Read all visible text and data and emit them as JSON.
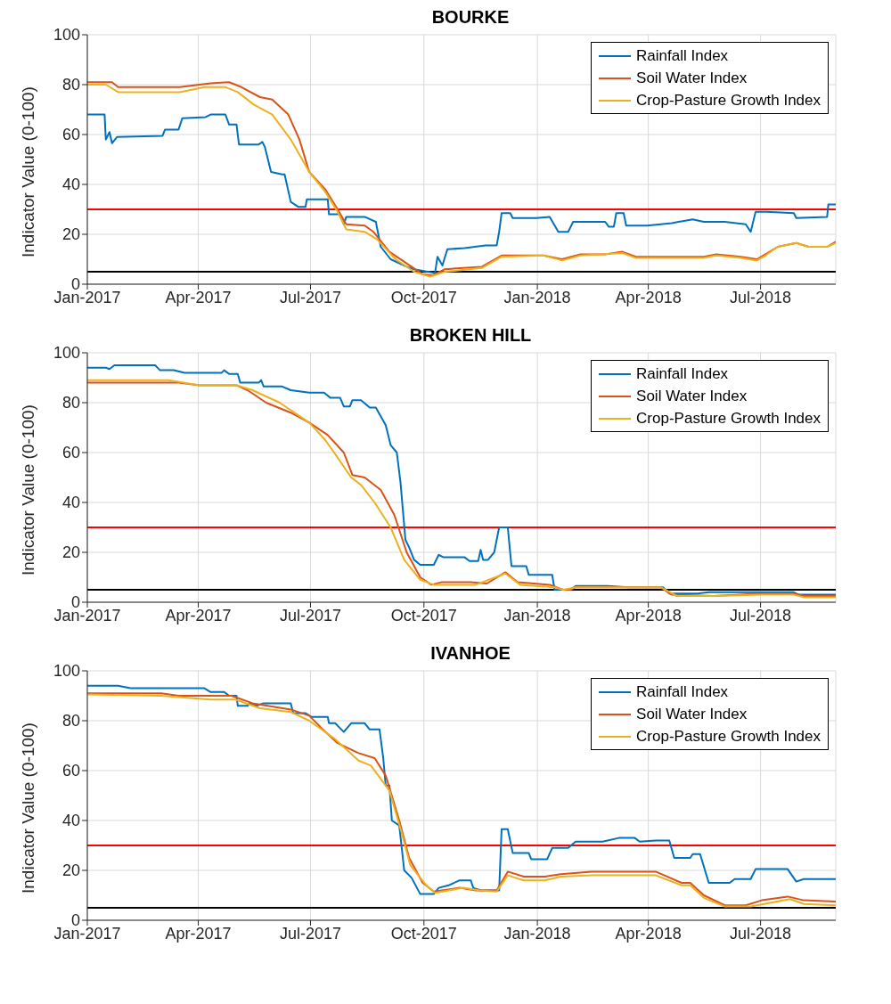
{
  "chart_data": [
    {
      "type": "line",
      "title": "BOURKE",
      "ylabel": "Indicator Value (0-100)",
      "xlim": [
        "2017-01-01",
        "2018-08-31"
      ],
      "xticks": [
        {
          "value": "2017-01-01",
          "label": "Jan-2017"
        },
        {
          "value": "2017-04-01",
          "label": "Apr-2017"
        },
        {
          "value": "2017-07-01",
          "label": "Jul-2017"
        },
        {
          "value": "2017-10-01",
          "label": "Oct-2017"
        },
        {
          "value": "2018-01-01",
          "label": "Jan-2018"
        },
        {
          "value": "2018-04-01",
          "label": "Apr-2018"
        },
        {
          "value": "2018-07-01",
          "label": "Jul-2018"
        }
      ],
      "ylim": [
        0,
        100
      ],
      "yticks": [
        0,
        20,
        40,
        60,
        80,
        100
      ],
      "grid": true,
      "legend": "top right",
      "ref_lines": [
        {
          "axis": "y",
          "value": 30,
          "color": "#ff0000"
        },
        {
          "axis": "y",
          "value": 5,
          "color": "#000000"
        }
      ],
      "series": [
        {
          "name": "Rainfall Index",
          "color": "#0072bd",
          "x": [
            "2017-01-01",
            "2017-01-15",
            "2017-01-16",
            "2017-01-19",
            "2017-01-21",
            "2017-01-25",
            "2017-03-03",
            "2017-03-05",
            "2017-03-16",
            "2017-03-19",
            "2017-04-07",
            "2017-04-11",
            "2017-04-23",
            "2017-04-26",
            "2017-05-02",
            "2017-05-04",
            "2017-05-20",
            "2017-05-23",
            "2017-05-25",
            "2017-05-30",
            "2017-06-08",
            "2017-06-10",
            "2017-06-15",
            "2017-06-21",
            "2017-06-27",
            "2017-06-28",
            "2017-07-15",
            "2017-07-16",
            "2017-07-25",
            "2017-07-28",
            "2017-07-30",
            "2017-08-14",
            "2017-08-23",
            "2017-08-27",
            "2017-09-04",
            "2017-09-17",
            "2017-09-23",
            "2017-10-04",
            "2017-10-10",
            "2017-10-12",
            "2017-10-16",
            "2017-10-20",
            "2017-11-03",
            "2017-11-20",
            "2017-11-29",
            "2017-12-01",
            "2017-12-03",
            "2017-12-10",
            "2017-12-12",
            "2017-12-31",
            "2018-01-11",
            "2018-01-18",
            "2018-01-26",
            "2018-01-30",
            "2018-02-25",
            "2018-02-28",
            "2018-03-04",
            "2018-03-06",
            "2018-03-12",
            "2018-03-14",
            "2018-03-31",
            "2018-04-20",
            "2018-05-07",
            "2018-05-16",
            "2018-06-02",
            "2018-06-19",
            "2018-06-23",
            "2018-06-27",
            "2018-07-06",
            "2018-07-28",
            "2018-07-30",
            "2018-08-24",
            "2018-08-25",
            "2018-08-31"
          ],
          "values": [
            68,
            68,
            58,
            61,
            56.5,
            59,
            59.5,
            62,
            62,
            66.5,
            67,
            68,
            68,
            64,
            64,
            56,
            56,
            57,
            55,
            45,
            44,
            44,
            33,
            31,
            31,
            34,
            34,
            28,
            28,
            24,
            27,
            27,
            25,
            15,
            10,
            7,
            6,
            5,
            4.5,
            11,
            7.5,
            14,
            14.5,
            15.5,
            15.5,
            21,
            28.5,
            28.5,
            26.5,
            26.5,
            27,
            21,
            21,
            25,
            25,
            23,
            23,
            28.5,
            28.5,
            23.5,
            23.5,
            24.5,
            26,
            25,
            25,
            24,
            21,
            29,
            29,
            28.5,
            26.5,
            27,
            32,
            32
          ]
        },
        {
          "name": "Soil Water Index",
          "color": "#d95319",
          "x": [
            "2017-01-01",
            "2017-01-21",
            "2017-01-26",
            "2017-03-17",
            "2017-04-11",
            "2017-04-26",
            "2017-05-06",
            "2017-05-21",
            "2017-05-31",
            "2017-06-13",
            "2017-06-22",
            "2017-06-30",
            "2017-07-13",
            "2017-07-23",
            "2017-07-30",
            "2017-08-14",
            "2017-08-21",
            "2017-09-03",
            "2017-09-18",
            "2017-09-30",
            "2017-10-08",
            "2017-10-18",
            "2017-11-17",
            "2017-12-03",
            "2018-01-06",
            "2018-01-21",
            "2018-02-05",
            "2018-02-25",
            "2018-03-11",
            "2018-03-22",
            "2018-05-16",
            "2018-05-26",
            "2018-06-15",
            "2018-06-28",
            "2018-07-05",
            "2018-07-15",
            "2018-07-30",
            "2018-08-09",
            "2018-08-24",
            "2018-08-31"
          ],
          "values": [
            81,
            81,
            79,
            79,
            80.5,
            81,
            79,
            75,
            74,
            68,
            58,
            45,
            38,
            30,
            24,
            23.5,
            21,
            13,
            8,
            4,
            3.5,
            6,
            7,
            11.5,
            11.5,
            10,
            12,
            12,
            13,
            11,
            11,
            12,
            11,
            10,
            12,
            15,
            16.5,
            15,
            15,
            17
          ]
        },
        {
          "name": "Crop-Pasture Growth Index",
          "color": "#edb120",
          "x": [
            "2017-01-01",
            "2017-01-16",
            "2017-01-26",
            "2017-03-17",
            "2017-04-06",
            "2017-04-23",
            "2017-05-03",
            "2017-05-16",
            "2017-05-31",
            "2017-06-15",
            "2017-06-30",
            "2017-07-13",
            "2017-07-23",
            "2017-07-30",
            "2017-08-14",
            "2017-08-24",
            "2017-09-08",
            "2017-09-23",
            "2017-10-06",
            "2017-10-18",
            "2017-11-17",
            "2017-12-03",
            "2018-01-06",
            "2018-01-21",
            "2018-02-05",
            "2018-03-11",
            "2018-03-22",
            "2018-05-16",
            "2018-05-26",
            "2018-06-15",
            "2018-06-28",
            "2018-07-05",
            "2018-07-15",
            "2018-07-30",
            "2018-08-09",
            "2018-08-24",
            "2018-08-31"
          ],
          "values": [
            80,
            80,
            77,
            77,
            79,
            79,
            77,
            72,
            68,
            58,
            45,
            37,
            29,
            22,
            21,
            18,
            10,
            5,
            3,
            5,
            6.5,
            11,
            11.5,
            9.5,
            11.5,
            12.5,
            10.5,
            10.5,
            11.5,
            10.5,
            9.5,
            11.5,
            15,
            16.5,
            15,
            15,
            16.5
          ]
        }
      ]
    },
    {
      "type": "line",
      "title": "BROKEN HILL",
      "ylabel": "Indicator Value (0-100)",
      "xlim": [
        "2017-01-01",
        "2018-08-31"
      ],
      "xticks": [
        {
          "value": "2017-01-01",
          "label": "Jan-2017"
        },
        {
          "value": "2017-04-01",
          "label": "Apr-2017"
        },
        {
          "value": "2017-07-01",
          "label": "Jul-2017"
        },
        {
          "value": "2017-10-01",
          "label": "Oct-2017"
        },
        {
          "value": "2018-01-01",
          "label": "Jan-2018"
        },
        {
          "value": "2018-04-01",
          "label": "Apr-2018"
        },
        {
          "value": "2018-07-01",
          "label": "Jul-2018"
        }
      ],
      "ylim": [
        0,
        100
      ],
      "yticks": [
        0,
        20,
        40,
        60,
        80,
        100
      ],
      "grid": true,
      "legend": "top right",
      "ref_lines": [
        {
          "axis": "y",
          "value": 30,
          "color": "#ff0000"
        },
        {
          "axis": "y",
          "value": 5,
          "color": "#000000"
        }
      ],
      "series": [
        {
          "name": "Rainfall Index",
          "color": "#0072bd",
          "x": [
            "2017-01-01",
            "2017-01-16",
            "2017-01-19",
            "2017-01-23",
            "2017-02-25",
            "2017-03-01",
            "2017-03-12",
            "2017-03-21",
            "2017-04-20",
            "2017-04-22",
            "2017-04-26",
            "2017-05-03",
            "2017-05-05",
            "2017-05-20",
            "2017-05-22",
            "2017-05-24",
            "2017-06-08",
            "2017-06-15",
            "2017-06-30",
            "2017-07-12",
            "2017-07-17",
            "2017-07-25",
            "2017-07-28",
            "2017-08-02",
            "2017-08-04",
            "2017-08-11",
            "2017-08-18",
            "2017-08-23",
            "2017-08-31",
            "2017-09-04",
            "2017-09-09",
            "2017-09-12",
            "2017-09-16",
            "2017-09-19",
            "2017-09-23",
            "2017-09-28",
            "2017-10-09",
            "2017-10-13",
            "2017-10-17",
            "2017-11-03",
            "2017-11-07",
            "2017-11-14",
            "2017-11-16",
            "2017-11-18",
            "2017-11-22",
            "2017-11-27",
            "2017-12-01",
            "2017-12-08",
            "2017-12-11",
            "2017-12-23",
            "2017-12-25",
            "2018-01-13",
            "2018-01-15",
            "2018-01-28",
            "2018-02-01",
            "2018-02-27",
            "2018-03-16",
            "2018-04-13",
            "2018-04-18",
            "2018-05-11",
            "2018-05-20",
            "2018-07-28",
            "2018-08-01",
            "2018-08-31"
          ],
          "values": [
            94,
            94,
            93.5,
            95,
            95,
            93,
            93,
            92,
            92,
            93,
            91.5,
            91.5,
            88,
            88,
            89,
            86.5,
            86.5,
            85,
            84,
            84,
            82,
            82,
            78.5,
            78.5,
            81,
            81,
            78,
            78,
            71,
            63,
            60,
            48,
            25,
            22,
            17,
            15,
            15,
            19,
            18,
            18,
            16.5,
            16.5,
            21,
            17,
            17,
            20,
            30,
            30,
            14.5,
            14.5,
            11,
            11,
            5,
            5,
            6.5,
            6.5,
            6,
            6,
            3.5,
            3.5,
            4,
            4,
            3,
            3
          ]
        },
        {
          "name": "Soil Water Index",
          "color": "#d95319",
          "x": [
            "2017-01-01",
            "2017-03-16",
            "2017-04-02",
            "2017-05-02",
            "2017-05-11",
            "2017-05-26",
            "2017-06-15",
            "2017-06-30",
            "2017-07-15",
            "2017-07-28",
            "2017-08-04",
            "2017-08-14",
            "2017-08-27",
            "2017-09-07",
            "2017-09-17",
            "2017-09-28",
            "2017-10-07",
            "2017-10-15",
            "2017-11-08",
            "2017-11-21",
            "2017-12-06",
            "2017-12-16",
            "2018-01-11",
            "2018-01-22",
            "2018-01-28",
            "2018-02-01",
            "2018-04-11",
            "2018-04-20",
            "2018-05-24",
            "2018-07-02",
            "2018-07-28",
            "2018-08-05",
            "2018-08-31"
          ],
          "values": [
            88,
            88,
            87,
            87,
            85,
            80,
            76,
            72,
            67,
            60,
            51,
            50,
            45,
            35,
            20,
            10,
            7,
            8,
            8,
            7.5,
            12,
            8,
            7,
            5,
            5,
            6,
            6,
            3,
            2.5,
            3.5,
            3.5,
            2.5,
            2.5
          ]
        },
        {
          "name": "Crop-Pasture Growth Index",
          "color": "#edb120",
          "x": [
            "2017-01-01",
            "2017-03-08",
            "2017-04-02",
            "2017-05-02",
            "2017-05-15",
            "2017-06-06",
            "2017-06-30",
            "2017-07-13",
            "2017-07-23",
            "2017-08-03",
            "2017-08-11",
            "2017-08-22",
            "2017-09-04",
            "2017-09-15",
            "2017-09-28",
            "2017-10-09",
            "2017-11-12",
            "2017-12-06",
            "2017-12-18",
            "2018-01-15",
            "2018-01-22",
            "2018-02-01",
            "2018-04-11",
            "2018-04-24",
            "2018-05-24",
            "2018-07-02",
            "2018-07-28",
            "2018-08-05",
            "2018-08-31"
          ],
          "values": [
            89,
            89,
            87,
            87,
            85,
            80,
            72,
            65,
            58,
            50,
            47,
            40,
            30,
            17,
            9,
            7,
            7,
            11.5,
            7,
            6,
            5,
            6,
            6,
            2.5,
            2.5,
            3,
            3,
            2,
            2
          ]
        }
      ]
    },
    {
      "type": "line",
      "title": "IVANHOE",
      "ylabel": "Indicator Value (0-100)",
      "xlim": [
        "2017-01-01",
        "2018-08-31"
      ],
      "xticks": [
        {
          "value": "2017-01-01",
          "label": "Jan-2017"
        },
        {
          "value": "2017-04-01",
          "label": "Apr-2017"
        },
        {
          "value": "2017-07-01",
          "label": "Jul-2017"
        },
        {
          "value": "2017-10-01",
          "label": "Oct-2017"
        },
        {
          "value": "2018-01-01",
          "label": "Jan-2018"
        },
        {
          "value": "2018-04-01",
          "label": "Apr-2018"
        },
        {
          "value": "2018-07-01",
          "label": "Jul-2018"
        }
      ],
      "ylim": [
        0,
        100
      ],
      "yticks": [
        0,
        20,
        40,
        60,
        80,
        100
      ],
      "grid": true,
      "legend": "top right",
      "ref_lines": [
        {
          "axis": "y",
          "value": 30,
          "color": "#ff0000"
        },
        {
          "axis": "y",
          "value": 5,
          "color": "#000000"
        }
      ],
      "series": [
        {
          "name": "Rainfall Index",
          "color": "#0072bd",
          "x": [
            "2017-01-01",
            "2017-01-26",
            "2017-02-05",
            "2017-04-06",
            "2017-04-11",
            "2017-04-22",
            "2017-04-26",
            "2017-05-02",
            "2017-05-03",
            "2017-05-11",
            "2017-05-13",
            "2017-05-18",
            "2017-05-24",
            "2017-06-15",
            "2017-06-17",
            "2017-06-27",
            "2017-07-02",
            "2017-07-15",
            "2017-07-16",
            "2017-07-21",
            "2017-07-28",
            "2017-08-03",
            "2017-08-14",
            "2017-08-18",
            "2017-08-26",
            "2017-08-29",
            "2017-08-31",
            "2017-09-03",
            "2017-09-05",
            "2017-09-11",
            "2017-09-15",
            "2017-09-21",
            "2017-09-28",
            "2017-10-09",
            "2017-10-13",
            "2017-10-21",
            "2017-10-30",
            "2017-11-08",
            "2017-11-10",
            "2017-11-16",
            "2017-12-01",
            "2017-12-03",
            "2017-12-08",
            "2017-12-12",
            "2017-12-25",
            "2017-12-27",
            "2018-01-09",
            "2018-01-13",
            "2018-01-26",
            "2018-02-01",
            "2018-02-23",
            "2018-03-08",
            "2018-03-21",
            "2018-03-25",
            "2018-04-07",
            "2018-04-18",
            "2018-04-22",
            "2018-05-05",
            "2018-05-07",
            "2018-05-13",
            "2018-05-20",
            "2018-06-06",
            "2018-06-10",
            "2018-06-23",
            "2018-06-27",
            "2018-07-23",
            "2018-07-30",
            "2018-08-05",
            "2018-08-31"
          ],
          "values": [
            94,
            94,
            93,
            93,
            91.5,
            91.5,
            90,
            90,
            86,
            86,
            87,
            86,
            87,
            87,
            83,
            83,
            81.5,
            81.5,
            79,
            79,
            75.5,
            79,
            79,
            76.5,
            76.5,
            65,
            54,
            54,
            40,
            38,
            20,
            17,
            10.5,
            10.5,
            13,
            14,
            16,
            16,
            13,
            12,
            12,
            36.5,
            36.5,
            27,
            27,
            24.5,
            24.5,
            29,
            29,
            31.5,
            31.5,
            33,
            33,
            31.5,
            32,
            32,
            25,
            25,
            26.5,
            26.5,
            15,
            15,
            16.5,
            16.5,
            20.5,
            20.5,
            15.5,
            16.5,
            16.5
          ]
        },
        {
          "name": "Soil Water Index",
          "color": "#d95319",
          "x": [
            "2017-01-01",
            "2017-03-02",
            "2017-03-16",
            "2017-04-28",
            "2017-05-15",
            "2017-06-15",
            "2017-06-30",
            "2017-07-10",
            "2017-07-23",
            "2017-08-09",
            "2017-08-22",
            "2017-08-31",
            "2017-09-11",
            "2017-09-19",
            "2017-09-30",
            "2017-10-09",
            "2017-10-30",
            "2017-11-12",
            "2017-11-29",
            "2017-12-08",
            "2017-12-21",
            "2018-01-07",
            "2018-01-20",
            "2018-02-14",
            "2018-04-07",
            "2018-04-28",
            "2018-05-05",
            "2018-05-16",
            "2018-06-02",
            "2018-06-19",
            "2018-07-02",
            "2018-07-23",
            "2018-08-05",
            "2018-08-31"
          ],
          "values": [
            91,
            91,
            90,
            90,
            87,
            84.5,
            82,
            77,
            71,
            67,
            65,
            58,
            40,
            25,
            15,
            11.5,
            13,
            12,
            12,
            19.5,
            17.5,
            17.5,
            18.5,
            19.5,
            19.5,
            15,
            15,
            10,
            6,
            6,
            8,
            9.5,
            8,
            7.5
          ]
        },
        {
          "name": "Crop-Pasture Growth Index",
          "color": "#edb120",
          "x": [
            "2017-01-01",
            "2017-03-02",
            "2017-04-11",
            "2017-05-01",
            "2017-05-21",
            "2017-06-15",
            "2017-06-30",
            "2017-07-20",
            "2017-08-09",
            "2017-08-19",
            "2017-09-03",
            "2017-09-13",
            "2017-09-20",
            "2017-10-03",
            "2017-10-10",
            "2017-11-02",
            "2017-11-15",
            "2017-11-29",
            "2017-12-08",
            "2017-12-21",
            "2018-01-07",
            "2018-01-20",
            "2018-02-14",
            "2018-04-07",
            "2018-04-28",
            "2018-05-05",
            "2018-05-16",
            "2018-06-02",
            "2018-06-23",
            "2018-07-25",
            "2018-08-05",
            "2018-08-31"
          ],
          "values": [
            90.5,
            90,
            88.5,
            88.5,
            85,
            83.5,
            80,
            73,
            64,
            62,
            52,
            35,
            22,
            14,
            11,
            13,
            12,
            11.5,
            18,
            16,
            16,
            17.5,
            18,
            18,
            14,
            14,
            9,
            5.5,
            5.5,
            8.5,
            6.5,
            6
          ]
        }
      ]
    }
  ]
}
